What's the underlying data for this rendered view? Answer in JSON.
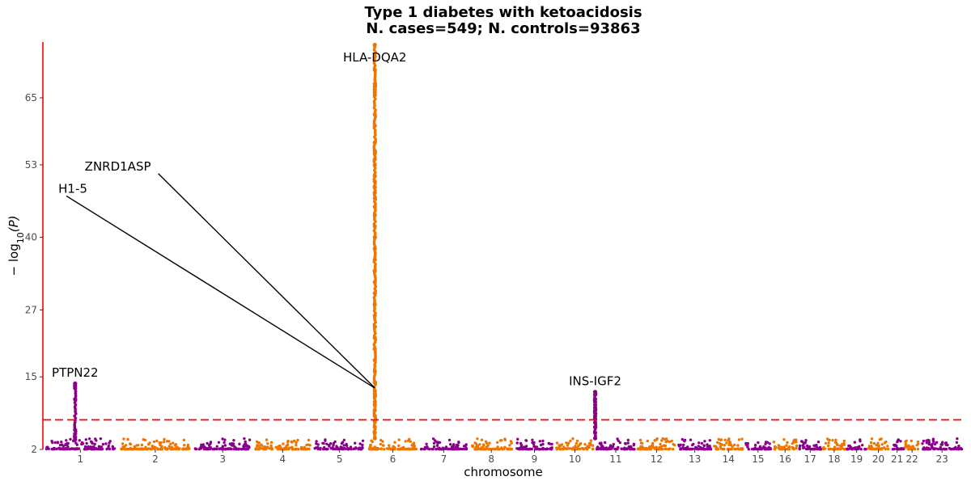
{
  "chart_data": {
    "type": "scatter",
    "title": "Type 1 diabetes with ketoacidosis",
    "subtitle": "N. cases=549; N. controls=93863",
    "xlabel": "chromosome",
    "ylabel_prefix": "− log",
    "ylabel_sub": "10",
    "ylabel_suffix": "(P)",
    "ylim": [
      2,
      75
    ],
    "yticks": [
      2,
      15,
      27,
      40,
      53,
      65
    ],
    "significance_line": 7.3,
    "colors": {
      "odd": "#8B008B",
      "even": "#EE7600",
      "axis": "#FF0000",
      "threshold": "#FF0000",
      "leader": "#000000"
    },
    "chromosomes": [
      {
        "label": "1",
        "start": 0,
        "end": 100
      },
      {
        "label": "2",
        "start": 100,
        "end": 200
      },
      {
        "label": "3",
        "start": 200,
        "end": 280
      },
      {
        "label": "4",
        "start": 280,
        "end": 360
      },
      {
        "label": "5",
        "start": 360,
        "end": 432
      },
      {
        "label": "6",
        "start": 432,
        "end": 502
      },
      {
        "label": "7",
        "start": 502,
        "end": 568
      },
      {
        "label": "8",
        "start": 568,
        "end": 629
      },
      {
        "label": "9",
        "start": 629,
        "end": 683
      },
      {
        "label": "10",
        "start": 683,
        "end": 737
      },
      {
        "label": "11",
        "start": 737,
        "end": 792
      },
      {
        "label": "12",
        "start": 792,
        "end": 846
      },
      {
        "label": "13",
        "start": 846,
        "end": 894
      },
      {
        "label": "14",
        "start": 894,
        "end": 936
      },
      {
        "label": "15",
        "start": 936,
        "end": 973
      },
      {
        "label": "16",
        "start": 973,
        "end": 1008
      },
      {
        "label": "17",
        "start": 1008,
        "end": 1040
      },
      {
        "label": "18",
        "start": 1040,
        "end": 1072
      },
      {
        "label": "19",
        "start": 1072,
        "end": 1100
      },
      {
        "label": "20",
        "start": 1100,
        "end": 1130
      },
      {
        "label": "21",
        "start": 1130,
        "end": 1150
      },
      {
        "label": "22",
        "start": 1150,
        "end": 1170
      },
      {
        "label": "23",
        "start": 1170,
        "end": 1230
      }
    ],
    "peaks": [
      {
        "chr": "1",
        "pos": 43,
        "values": [
          13.8,
          13.4,
          13.0,
          11.0,
          5.5,
          4.8,
          4.2,
          3.8
        ]
      },
      {
        "chr": "6",
        "pos": 11,
        "values": [
          74.5,
          70.0,
          67.5,
          67.0,
          66.5,
          66.0,
          65.5,
          62.0,
          60.0,
          57.0,
          55.5,
          55.0,
          54.0,
          53.0,
          51.0,
          50.0,
          49.0,
          48.0,
          47.0,
          45.5,
          44.0,
          42.0,
          40.0,
          38.0,
          36.0,
          34.0,
          32.0,
          30.0,
          28.0,
          26.0,
          24.0,
          22.0,
          20.0,
          18.0,
          16.0,
          14.0,
          12.5,
          12.0,
          11.5,
          10.5,
          10.0,
          9.0,
          8.0,
          7.0,
          6.0,
          5.0,
          4.0
        ]
      },
      {
        "chr": "11",
        "pos": 0,
        "values": [
          12.3,
          11.8,
          11.0,
          10.5,
          10.0,
          9.5,
          9.0,
          8.5,
          8.0,
          7.5,
          6.8,
          6.0,
          5.0,
          4.0
        ]
      }
    ],
    "annotations": [
      {
        "label": "HLA-DQA2",
        "x": 443,
        "y": 74.5,
        "text_x": 443,
        "text_y": 71.5,
        "anchor": "middle",
        "leader": false
      },
      {
        "label": "ZNRD1ASP",
        "x": 443,
        "y": 13,
        "text_x": 100,
        "text_y": 52.0,
        "anchor": "middle",
        "leader": true
      },
      {
        "label": "H1-5",
        "x": 443,
        "y": 13,
        "text_x": 40,
        "text_y": 48.0,
        "anchor": "middle",
        "leader": true
      },
      {
        "label": "PTPN22",
        "x": 43,
        "y": 13.8,
        "text_x": 43,
        "text_y": 15.0,
        "anchor": "middle",
        "leader": false
      },
      {
        "label": "INS-IGF2",
        "x": 737,
        "y": 12.3,
        "text_x": 737,
        "text_y": 13.5,
        "anchor": "middle",
        "leader": false
      }
    ]
  }
}
